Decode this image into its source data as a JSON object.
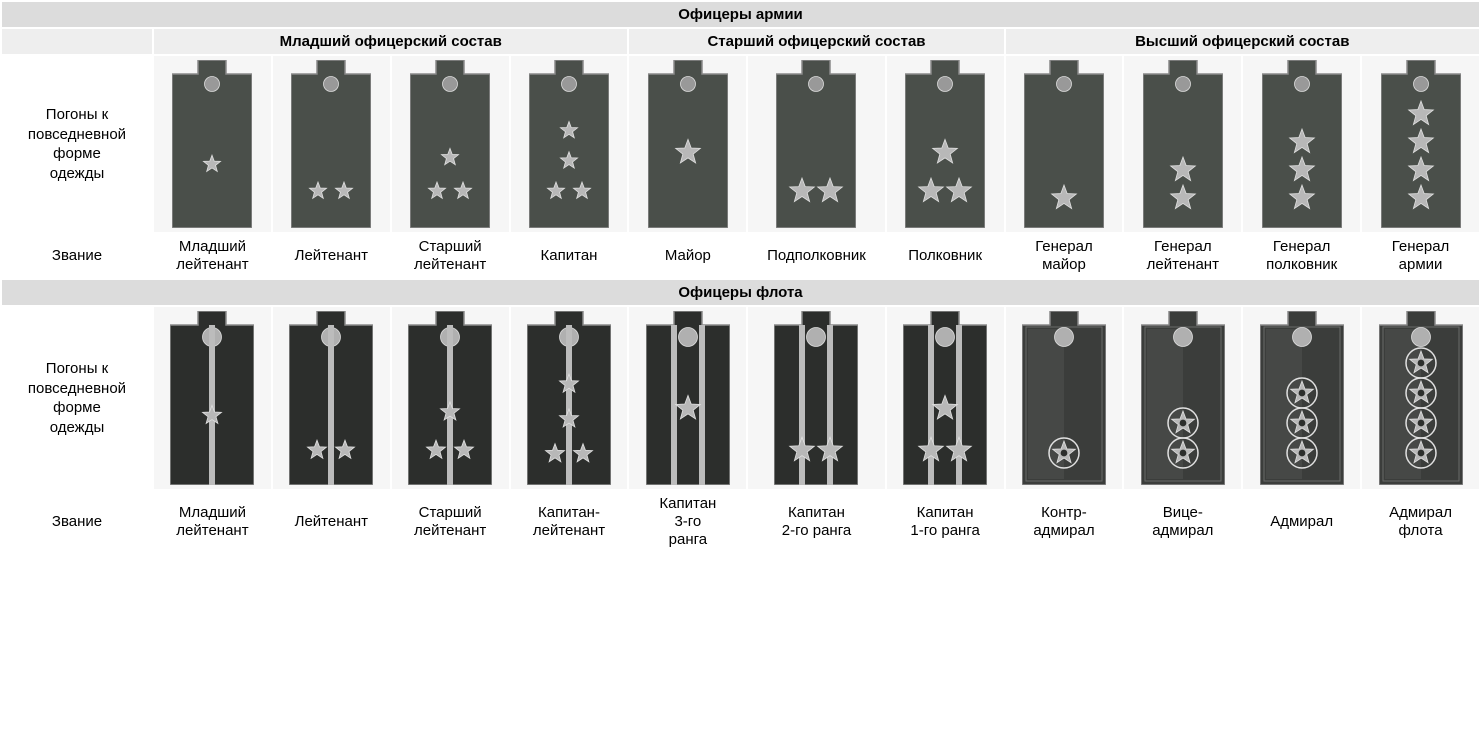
{
  "colors": {
    "hdr_main_bg": "#dcdcdc",
    "hdr_grp_bg": "#eeeeee",
    "cell_bg": "#f6f6f6",
    "army_fill": "#4a4f4a",
    "navy_fill": "#2c2e2c",
    "edge": "#8a8a8a",
    "star_fill": "#b8b8b8",
    "star_stroke": "#e0e0e0",
    "button_fill": "#999999",
    "stripe": "#bcbcbc",
    "navy_button": "#b0b0b0"
  },
  "dims": {
    "ew": 80,
    "eh": 168,
    "button_r": 7.5,
    "star_small": 9,
    "star_large": 13,
    "stripe_narrow": 6,
    "stripe_wide": 14,
    "navy_ew": 84,
    "navy_eh": 174
  },
  "labels": {
    "row_insignia_a": "Погоны к\nповседневной\nформе\nодежды",
    "row_rank": "Звание"
  },
  "sections": [
    {
      "title": "Офицеры армии",
      "type": "army",
      "groups": [
        {
          "label": "Младший офицерский состав",
          "span": 4
        },
        {
          "label": "Старший офицерский состав",
          "span": 3
        },
        {
          "label": "Высший офицерский состав",
          "span": 4
        }
      ],
      "ranks": [
        {
          "name": "Младший\nлейтенант",
          "stars": "j1"
        },
        {
          "name": "Лейтенант",
          "stars": "j2"
        },
        {
          "name": "Старший\nлейтенант",
          "stars": "j3"
        },
        {
          "name": "Капитан",
          "stars": "j4"
        },
        {
          "name": "Майор",
          "stars": "s1"
        },
        {
          "name": "Подполковник",
          "stars": "s2"
        },
        {
          "name": "Полковник",
          "stars": "s3"
        },
        {
          "name": "Генерал\nмайор",
          "stars": "g1"
        },
        {
          "name": "Генерал\nлейтенант",
          "stars": "g2"
        },
        {
          "name": "Генерал\nполковник",
          "stars": "g3"
        },
        {
          "name": "Генерал\nармии",
          "stars": "g4"
        }
      ]
    },
    {
      "title": "Офицеры флота",
      "type": "navy",
      "groups": [],
      "ranks": [
        {
          "name": "Младший\nлейтенант",
          "stars": "nj1"
        },
        {
          "name": "Лейтенант",
          "stars": "nj2"
        },
        {
          "name": "Старший\nлейтенант",
          "stars": "nj3"
        },
        {
          "name": "Капитан-\nлейтенант",
          "stars": "nj4"
        },
        {
          "name": "Капитан\n3-го\nранга",
          "stars": "ns1"
        },
        {
          "name": "Капитан\n2-го ранга",
          "stars": "ns2"
        },
        {
          "name": "Капитан\n1-го ранга",
          "stars": "ns3"
        },
        {
          "name": "Контр-\nадмирал",
          "stars": "na1"
        },
        {
          "name": "Вице-\nадмирал",
          "stars": "na2"
        },
        {
          "name": "Адмирал",
          "stars": "na3"
        },
        {
          "name": "Адмирал\nфлота",
          "stars": "na4"
        }
      ]
    }
  ]
}
